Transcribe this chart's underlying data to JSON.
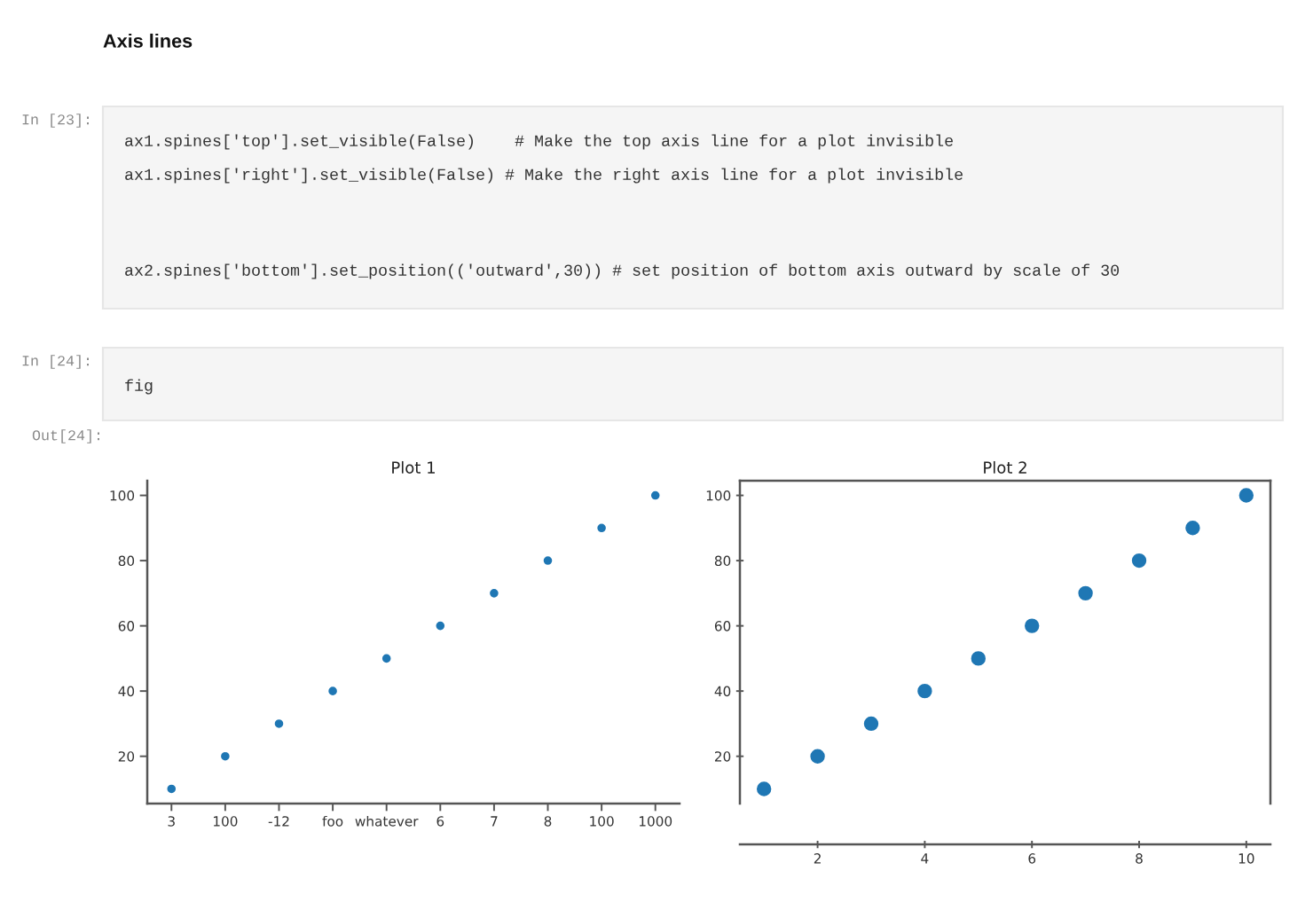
{
  "chart_data": [
    {
      "type": "scatter",
      "title": "Plot 1",
      "categories": [
        "3",
        "100",
        "-12",
        "foo",
        "whatever",
        "6",
        "7",
        "8",
        "100",
        "1000"
      ],
      "values": [
        10,
        20,
        30,
        40,
        50,
        60,
        70,
        80,
        90,
        100
      ],
      "color": "#1f77b4",
      "marker": "circle",
      "ylim": [
        5.5,
        104.5
      ],
      "yticks": [
        20,
        40,
        60,
        80,
        100
      ],
      "annotations": [
        "Axis lines",
        "In [23]:",
        "ax1.spines['top'].set_visible(False)    # Make the top axis line for a plot invisible",
        "ax1.spines['right'].set_visible(False) # Make the right axis line for a plot invisible",
        "ax2.spines['bottom'].set_position(('outward',30)) # set position of bottom axis outward by scale of 30",
        "In [24]:",
        "fig",
        "Out[24]:"
      ]
    },
    {
      "type": "scatter",
      "title": "Plot 2",
      "x": [
        1,
        2,
        3,
        4,
        5,
        6,
        7,
        8,
        9,
        10
      ],
      "values": [
        10,
        20,
        30,
        40,
        50,
        60,
        70,
        80,
        90,
        100
      ],
      "color": "#1f77b4",
      "marker": "circle",
      "xlim": [
        0.55,
        10.45
      ],
      "xticks": [
        2,
        4,
        6,
        8,
        10
      ],
      "ylim": [
        5.5,
        104.5
      ],
      "yticks": [
        20,
        40,
        60,
        80,
        100
      ]
    }
  ]
}
